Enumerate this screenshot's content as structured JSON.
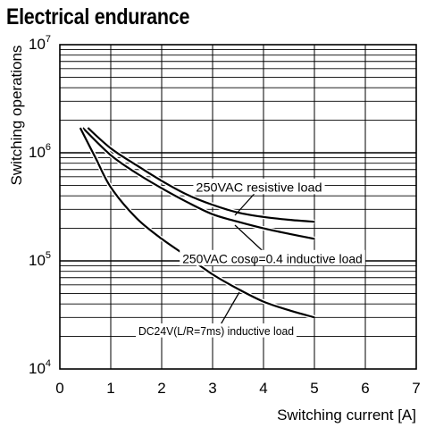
{
  "chart_data": {
    "type": "line",
    "title": "Electrical endurance",
    "xlabel": "Switching current [A]",
    "ylabel": "Switching operations",
    "xlim": [
      0,
      7
    ],
    "ylim": [
      10000,
      10000000
    ],
    "yscale": "log",
    "x_ticks": [
      "0",
      "1",
      "2",
      "3",
      "4",
      "5",
      "6",
      "7"
    ],
    "y_ticks": [
      {
        "base": "10",
        "exp": "4"
      },
      {
        "base": "10",
        "exp": "5"
      },
      {
        "base": "10",
        "exp": "6"
      },
      {
        "base": "10",
        "exp": "7"
      }
    ],
    "grid": true,
    "series": [
      {
        "name": "250VAC resistive load",
        "x": [
          0.55,
          1,
          1.5,
          2,
          2.5,
          3,
          3.5,
          4,
          4.5,
          5
        ],
        "y": [
          1700000,
          1100000,
          770000,
          550000,
          410000,
          330000,
          280000,
          255000,
          240000,
          230000
        ]
      },
      {
        "name": "250VAC cosφ=0.4 inductive load",
        "x": [
          0.45,
          1,
          1.5,
          2,
          2.5,
          3,
          3.5,
          4,
          4.5,
          5
        ],
        "y": [
          1700000,
          950000,
          650000,
          470000,
          350000,
          270000,
          230000,
          200000,
          178000,
          160000
        ]
      },
      {
        "name": "DC24V(L/R=7ms) inductive load",
        "x": [
          0.4,
          0.7,
          1,
          1.5,
          2,
          2.5,
          3,
          3.5,
          4,
          4.5,
          5
        ],
        "y": [
          1700000,
          900000,
          480000,
          250000,
          160000,
          110000,
          75000,
          55000,
          42000,
          35000,
          30000
        ]
      }
    ],
    "annotations": [
      {
        "text": "250VAC resistive load",
        "series": 0
      },
      {
        "text": "250VAC cosφ=0.4 inductive load",
        "series": 1
      },
      {
        "text": "DC24V(L/R=7ms) inductive load",
        "series": 2
      }
    ]
  }
}
